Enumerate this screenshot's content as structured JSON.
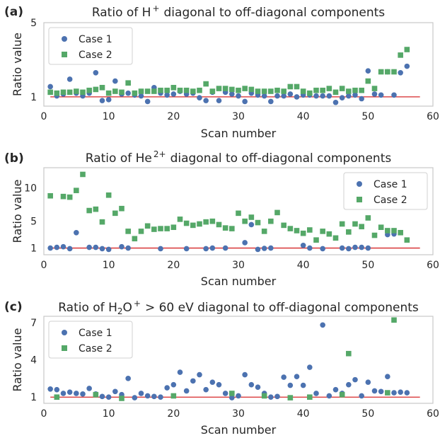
{
  "colors": {
    "case1": "#4c72b0",
    "case2": "#55a868",
    "refline": "#d62728"
  },
  "chart_data": [
    {
      "type": "scatter",
      "panel_label": "(a)",
      "title_main": "Ratio of H",
      "title_sup": "+",
      "title_rest": "diagonal to off-diagonal components",
      "xlabel": "Scan number",
      "ylabel": "Ratio value",
      "xlim": [
        0,
        60
      ],
      "ylim": [
        0.5,
        5
      ],
      "xticks": [
        0,
        10,
        20,
        30,
        40,
        50,
        60
      ],
      "yticks": [
        1,
        5
      ],
      "grid": false,
      "legend": "top-left",
      "reference_line": {
        "y": 1,
        "x": [
          1,
          58
        ]
      },
      "series": [
        {
          "name": "Case 1",
          "marker": "circle",
          "x": [
            1,
            2,
            3,
            4,
            5,
            6,
            7,
            8,
            9,
            10,
            11,
            12,
            13,
            14,
            15,
            16,
            17,
            18,
            19,
            20,
            21,
            22,
            23,
            24,
            25,
            26,
            27,
            28,
            29,
            30,
            31,
            32,
            33,
            34,
            35,
            36,
            37,
            38,
            39,
            40,
            41,
            42,
            43,
            44,
            45,
            46,
            47,
            48,
            49,
            50,
            51,
            52,
            53,
            54,
            55,
            56
          ],
          "y": [
            1.55,
            1.05,
            1.15,
            1.95,
            1.2,
            1.05,
            1.2,
            2.3,
            0.8,
            0.85,
            1.85,
            1.15,
            1.2,
            1.1,
            1.05,
            0.75,
            1.5,
            1.2,
            1.1,
            1.15,
            1.3,
            1.15,
            1.2,
            0.95,
            0.8,
            1.25,
            0.8,
            1.25,
            1.15,
            1.05,
            0.75,
            1.2,
            1.1,
            1.05,
            0.75,
            1.05,
            1.05,
            1.15,
            1.0,
            1.1,
            1.1,
            1.05,
            1.05,
            1.05,
            0.7,
            0.95,
            1.05,
            1.1,
            0.9,
            2.4,
            1.15,
            1.1,
            2.35,
            1.1,
            2.3,
            2.65
          ]
        },
        {
          "name": "Case 2",
          "marker": "square",
          "x": [
            1,
            2,
            3,
            4,
            5,
            6,
            7,
            8,
            9,
            10,
            11,
            12,
            13,
            14,
            15,
            16,
            17,
            18,
            19,
            20,
            21,
            22,
            23,
            24,
            25,
            26,
            27,
            28,
            29,
            30,
            31,
            32,
            33,
            34,
            35,
            36,
            37,
            38,
            39,
            40,
            41,
            42,
            43,
            44,
            45,
            46,
            47,
            48,
            49,
            50,
            51,
            52,
            53,
            54,
            55,
            56
          ],
          "y": [
            1.25,
            1.2,
            1.25,
            1.25,
            1.3,
            1.25,
            1.35,
            1.4,
            1.5,
            1.2,
            1.3,
            1.25,
            1.75,
            1.2,
            1.3,
            1.3,
            1.3,
            1.35,
            1.35,
            1.5,
            1.35,
            1.35,
            1.3,
            1.35,
            1.7,
            1.3,
            1.45,
            1.45,
            1.4,
            1.35,
            1.45,
            1.4,
            1.3,
            1.3,
            1.3,
            1.35,
            1.3,
            1.55,
            1.55,
            1.3,
            1.2,
            1.35,
            1.35,
            1.45,
            1.25,
            1.45,
            1.3,
            1.35,
            1.35,
            1.85,
            1.45,
            2.35,
            2.35,
            2.35,
            3.25,
            3.55
          ]
        }
      ]
    },
    {
      "type": "scatter",
      "panel_label": "(b)",
      "title_main": "Ratio of He",
      "title_sup": "2+",
      "title_rest": "diagonal to off-diagonal components",
      "xlabel": "Scan number",
      "ylabel": "Ratio value",
      "xlim": [
        0,
        60
      ],
      "ylim": [
        0,
        13
      ],
      "xticks": [
        0,
        10,
        20,
        30,
        40,
        50,
        60
      ],
      "yticks": [
        1,
        5,
        10
      ],
      "grid": false,
      "legend": "top-right",
      "reference_line": {
        "y": 1,
        "x": [
          1,
          58
        ]
      },
      "series": [
        {
          "name": "Case 1",
          "marker": "circle",
          "x": [
            1,
            2,
            3,
            4,
            5,
            7,
            8,
            9,
            10,
            12,
            13,
            18,
            22,
            25,
            26,
            28,
            31,
            32,
            33,
            34,
            35,
            40,
            41,
            43,
            46,
            47,
            48,
            49,
            50,
            53,
            54
          ],
          "y": [
            1.0,
            1.1,
            1.2,
            0.9,
            3.3,
            1.1,
            1.1,
            0.9,
            0.8,
            1.2,
            1.0,
            0.9,
            0.9,
            0.9,
            1.0,
            1.0,
            1.8,
            4.5,
            0.8,
            0.95,
            1.0,
            1.4,
            1.0,
            0.9,
            1.0,
            0.9,
            1.1,
            1.1,
            1.0,
            3.0,
            3.1
          ]
        },
        {
          "name": "Case 2",
          "marker": "square",
          "x": [
            1,
            3,
            4,
            5,
            6,
            7,
            8,
            9,
            10,
            11,
            12,
            13,
            14,
            15,
            16,
            17,
            18,
            19,
            20,
            21,
            22,
            23,
            24,
            25,
            26,
            27,
            28,
            29,
            30,
            31,
            32,
            33,
            34,
            35,
            36,
            37,
            38,
            39,
            40,
            41,
            42,
            43,
            44,
            45,
            46,
            47,
            48,
            49,
            50,
            51,
            52,
            53,
            54,
            55,
            56
          ],
          "y": [
            8.8,
            8.7,
            8.6,
            9.6,
            12.0,
            6.6,
            6.8,
            4.9,
            8.9,
            6.2,
            6.9,
            3.5,
            2.4,
            3.5,
            4.3,
            3.8,
            3.9,
            3.9,
            4.1,
            5.3,
            4.7,
            4.4,
            4.6,
            4.9,
            5.0,
            4.5,
            4.0,
            3.9,
            6.2,
            5.0,
            5.6,
            4.8,
            3.5,
            5.0,
            6.3,
            4.4,
            3.9,
            3.6,
            3.2,
            3.7,
            2.2,
            3.5,
            3.1,
            2.5,
            4.6,
            3.4,
            4.6,
            4.2,
            5.5,
            2.9,
            4.1,
            3.6,
            3.6,
            3.3,
            2.2
          ]
        }
      ]
    },
    {
      "type": "scatter",
      "panel_label": "(c)",
      "title_main": "Ratio of H",
      "title_sub": "2",
      "title_mid": "O",
      "title_sup": "+",
      "title_rest": "> 60 eV diagonal to off-diagonal components",
      "xlabel": "Scan number",
      "ylabel": "Ratio value",
      "xlim": [
        0,
        60
      ],
      "ylim": [
        0.5,
        7.5
      ],
      "xticks": [
        0,
        10,
        20,
        30,
        40,
        50,
        60
      ],
      "yticks": [
        1,
        4,
        7
      ],
      "grid": false,
      "legend": "top-left",
      "reference_line": {
        "y": 1,
        "x": [
          1,
          58
        ]
      },
      "series": [
        {
          "name": "Case 1",
          "marker": "circle",
          "x": [
            1,
            2,
            3,
            4,
            5,
            6,
            7,
            8,
            9,
            10,
            11,
            12,
            13,
            14,
            15,
            16,
            17,
            18,
            19,
            20,
            21,
            22,
            23,
            24,
            25,
            26,
            27,
            28,
            29,
            30,
            31,
            32,
            33,
            34,
            35,
            36,
            37,
            38,
            39,
            40,
            41,
            42,
            43,
            44,
            45,
            46,
            47,
            48,
            49,
            50,
            51,
            52,
            53,
            54,
            55,
            56
          ],
          "y": [
            1.65,
            1.6,
            1.3,
            1.4,
            1.3,
            1.25,
            1.7,
            1.25,
            1.05,
            1.0,
            1.45,
            1.2,
            2.5,
            0.95,
            1.3,
            1.1,
            1.05,
            1.0,
            1.75,
            2.0,
            3.0,
            1.5,
            2.3,
            2.8,
            1.6,
            2.2,
            2.0,
            1.3,
            0.95,
            1.1,
            2.8,
            2.0,
            1.8,
            1.3,
            1.0,
            1.05,
            2.6,
            1.95,
            2.65,
            1.95,
            3.4,
            1.3,
            6.8,
            1.1,
            1.6,
            1.3,
            2.0,
            2.4,
            1.1,
            2.2,
            1.5,
            1.45,
            2.65,
            1.35,
            1.4,
            1.35
          ]
        },
        {
          "name": "Case 2",
          "marker": "square",
          "x": [
            2,
            8,
            12,
            20,
            29,
            34,
            38,
            41,
            46,
            47,
            53,
            54
          ],
          "y": [
            1.0,
            1.2,
            0.9,
            1.1,
            1.3,
            1.1,
            0.95,
            1.0,
            1.2,
            4.5,
            1.35,
            7.2
          ]
        }
      ]
    }
  ]
}
